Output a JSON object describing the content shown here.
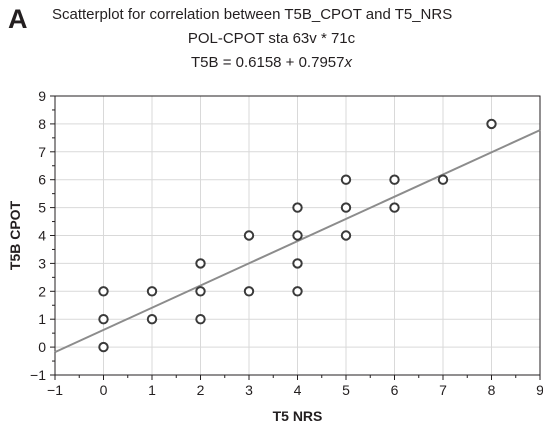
{
  "panel_label": "A",
  "chart_data": {
    "type": "scatter",
    "title": "Scatterplot for correlation between T5B_CPOT and T5_NRS",
    "subtitle": "POL-CPOT sta 63v * 71c",
    "equation": "T5B = 0.6158 + 0.7957x",
    "equation_prefix": "T5B = 0.6158 + 0.7957",
    "equation_var": "x",
    "xlabel": "T5  NRS",
    "ylabel": "T5B CPOT",
    "xlim": [
      -1,
      9
    ],
    "ylim": [
      -1,
      9
    ],
    "xticks": [
      -1,
      0,
      1,
      2,
      3,
      4,
      5,
      6,
      7,
      8,
      9
    ],
    "yticks": [
      -1,
      0,
      1,
      2,
      3,
      4,
      5,
      6,
      7,
      8,
      9
    ],
    "grid": true,
    "regression": {
      "intercept": 0.6158,
      "slope": 0.7957
    },
    "points": [
      {
        "x": 0,
        "y": 0
      },
      {
        "x": 0,
        "y": 1
      },
      {
        "x": 0,
        "y": 2
      },
      {
        "x": 1,
        "y": 1
      },
      {
        "x": 1,
        "y": 2
      },
      {
        "x": 2,
        "y": 1
      },
      {
        "x": 2,
        "y": 2
      },
      {
        "x": 2,
        "y": 3
      },
      {
        "x": 3,
        "y": 2
      },
      {
        "x": 3,
        "y": 4
      },
      {
        "x": 4,
        "y": 2
      },
      {
        "x": 4,
        "y": 3
      },
      {
        "x": 4,
        "y": 4
      },
      {
        "x": 4,
        "y": 5
      },
      {
        "x": 5,
        "y": 4
      },
      {
        "x": 5,
        "y": 5
      },
      {
        "x": 5,
        "y": 6
      },
      {
        "x": 6,
        "y": 5
      },
      {
        "x": 6,
        "y": 6
      },
      {
        "x": 7,
        "y": 6
      },
      {
        "x": 8,
        "y": 8
      }
    ],
    "colors": {
      "points": "#3a3a3a",
      "line": "#8c8c8c",
      "grid": "#d9d9d9",
      "axis": "#231f20"
    }
  }
}
